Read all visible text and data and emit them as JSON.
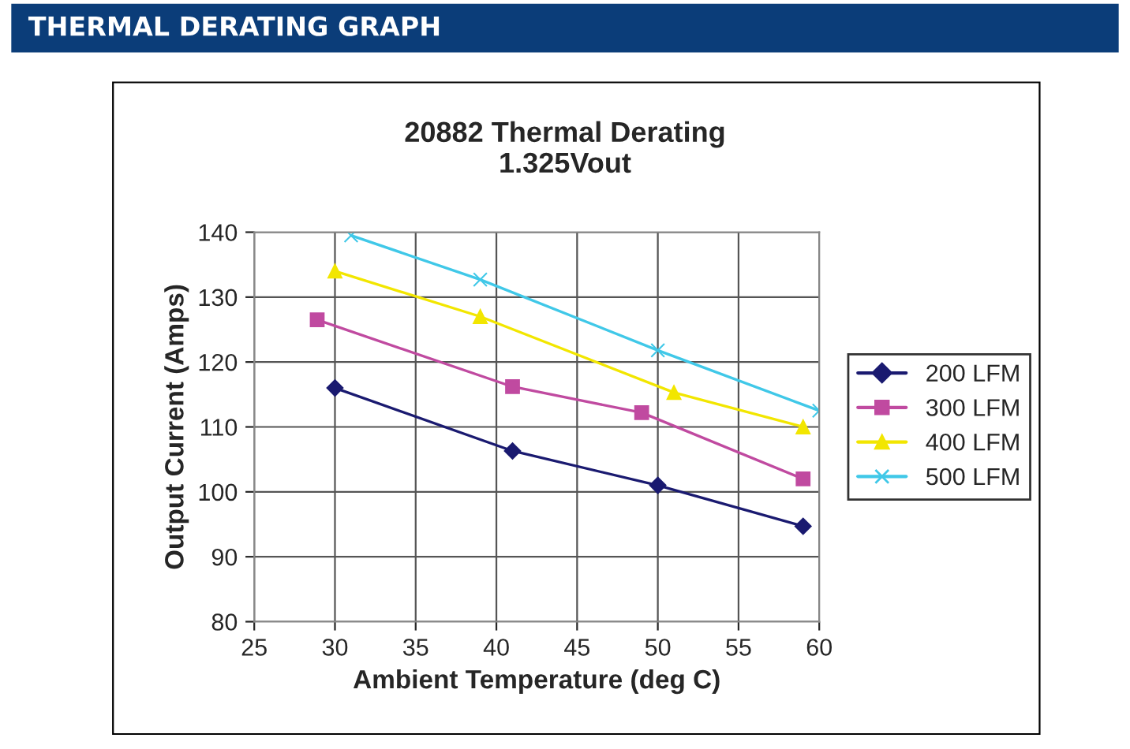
{
  "chart_data": {
    "type": "line",
    "title": "THERMAL DERATING GRAPH",
    "subtitle": "20882 Thermal Derating\n1.325Vout",
    "xlabel": "Ambient Temperature (deg C)",
    "ylabel": "Output Current (Amps)",
    "xlim": [
      25,
      60
    ],
    "xticks": [
      25,
      30,
      35,
      40,
      45,
      50,
      55,
      60
    ],
    "ylim": [
      80,
      140
    ],
    "yticks": [
      80,
      90,
      100,
      110,
      120,
      130,
      140
    ],
    "grid": true,
    "legend": "right",
    "series": [
      {
        "name": "200 LFM",
        "color": "#1a1a70",
        "marker": "diamond",
        "x": [
          30,
          41,
          50,
          59
        ],
        "values": [
          116,
          106.3,
          101,
          94.7
        ]
      },
      {
        "name": "300 LFM",
        "color": "#c04aa0",
        "marker": "square",
        "x": [
          28.9,
          41,
          49,
          59
        ],
        "values": [
          126.5,
          116.2,
          112.2,
          102
        ]
      },
      {
        "name": "400 LFM",
        "color": "#f2e600",
        "marker": "triangle",
        "x": [
          30,
          39,
          51,
          59
        ],
        "values": [
          134,
          127,
          115.3,
          110
        ]
      },
      {
        "name": "500 LFM",
        "color": "#40c8e8",
        "marker": "cross",
        "x": [
          31,
          39,
          50,
          60
        ],
        "values": [
          139.5,
          132.7,
          121.8,
          112.5
        ]
      }
    ]
  }
}
